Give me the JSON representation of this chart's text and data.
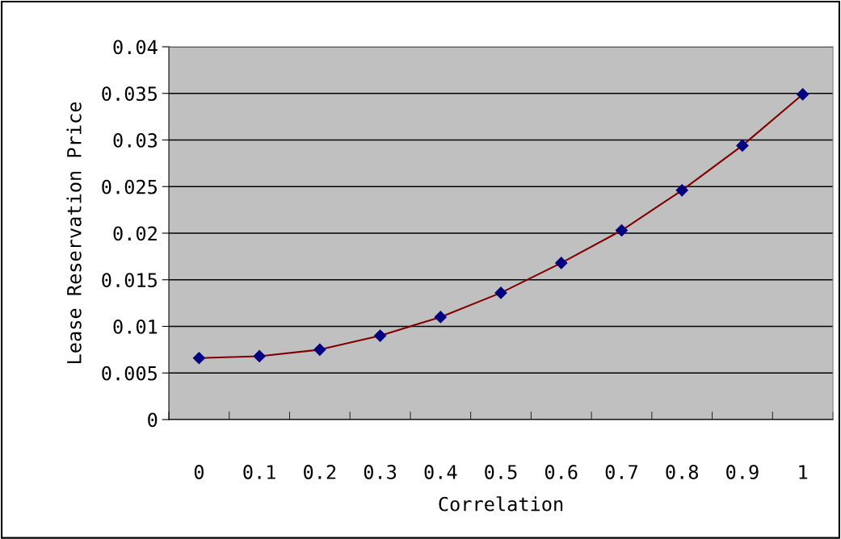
{
  "chart_data": {
    "type": "line",
    "xlabel": "Correlation",
    "ylabel": "Lease Reservation Price",
    "categories": [
      "0",
      "0.1",
      "0.2",
      "0.3",
      "0.4",
      "0.5",
      "0.6",
      "0.7",
      "0.8",
      "0.9",
      "1"
    ],
    "series": [
      {
        "color": "#800000",
        "values": [
          0.0066,
          0.0068,
          0.0075,
          0.009,
          0.011,
          0.0136,
          0.0168,
          0.0203,
          0.0246,
          0.0294,
          0.0349
        ]
      }
    ],
    "marker": "diamond",
    "line_style": "solid",
    "ylim": [
      0,
      0.04
    ],
    "yticks": [
      0,
      0.005,
      0.01,
      0.015,
      0.02,
      0.025,
      0.03,
      0.035,
      0.04
    ],
    "grid": "y"
  }
}
